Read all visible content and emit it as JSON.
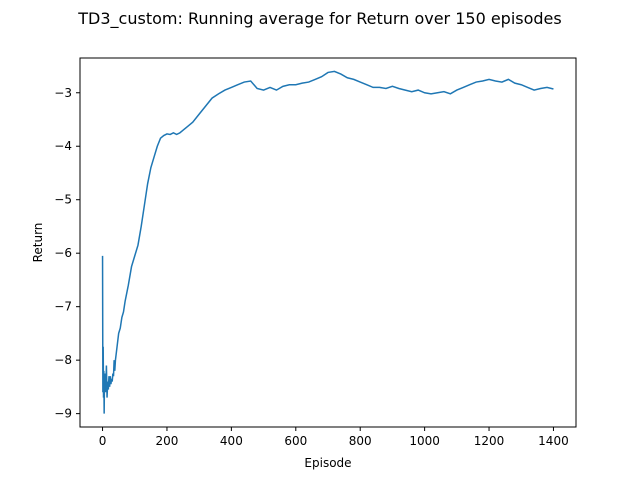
{
  "chart_data": {
    "type": "line",
    "title": "TD3_custom: Running average for Return over 150 episodes",
    "xlabel": "Episode",
    "ylabel": "Return",
    "xlim": [
      -70,
      1470
    ],
    "ylim": [
      -9.25,
      -2.35
    ],
    "xticks": [
      0,
      200,
      400,
      600,
      800,
      1000,
      1200,
      1400
    ],
    "yticks": [
      -9,
      -8,
      -7,
      -6,
      -5,
      -4,
      -3
    ],
    "xtick_labels": [
      "0",
      "200",
      "400",
      "600",
      "800",
      "1000",
      "1200",
      "1400"
    ],
    "ytick_labels": [
      "−9",
      "−8",
      "−7",
      "−6",
      "−5",
      "−4",
      "−3"
    ],
    "grid": false,
    "series": [
      {
        "color": "#1f77b4",
        "x": [
          0,
          1,
          2,
          3,
          4,
          5,
          6,
          7,
          8,
          10,
          12,
          14,
          16,
          18,
          20,
          22,
          24,
          26,
          28,
          30,
          32,
          34,
          36,
          38,
          40,
          45,
          50,
          55,
          60,
          65,
          70,
          80,
          90,
          100,
          110,
          120,
          130,
          140,
          150,
          160,
          170,
          180,
          190,
          200,
          210,
          220,
          230,
          240,
          250,
          260,
          280,
          300,
          320,
          340,
          360,
          380,
          400,
          420,
          440,
          460,
          480,
          500,
          520,
          540,
          560,
          580,
          600,
          620,
          640,
          660,
          680,
          700,
          720,
          740,
          760,
          780,
          800,
          820,
          840,
          860,
          880,
          900,
          920,
          940,
          960,
          980,
          1000,
          1020,
          1040,
          1060,
          1080,
          1100,
          1120,
          1140,
          1160,
          1180,
          1200,
          1220,
          1240,
          1260,
          1280,
          1300,
          1320,
          1340,
          1360,
          1380,
          1400
        ],
        "y": [
          -6.05,
          -8.6,
          -7.75,
          -8.7,
          -8.2,
          -9.0,
          -8.3,
          -8.6,
          -8.25,
          -8.6,
          -8.1,
          -8.7,
          -8.4,
          -8.55,
          -8.3,
          -8.5,
          -8.3,
          -8.45,
          -8.35,
          -8.4,
          -8.25,
          -8.3,
          -8.0,
          -8.2,
          -8.0,
          -7.75,
          -7.5,
          -7.4,
          -7.2,
          -7.1,
          -6.9,
          -6.6,
          -6.25,
          -6.05,
          -5.85,
          -5.5,
          -5.1,
          -4.7,
          -4.4,
          -4.2,
          -4.0,
          -3.85,
          -3.8,
          -3.77,
          -3.78,
          -3.75,
          -3.78,
          -3.75,
          -3.7,
          -3.65,
          -3.55,
          -3.4,
          -3.25,
          -3.1,
          -3.02,
          -2.95,
          -2.9,
          -2.85,
          -2.8,
          -2.78,
          -2.92,
          -2.95,
          -2.9,
          -2.95,
          -2.88,
          -2.85,
          -2.85,
          -2.82,
          -2.8,
          -2.75,
          -2.7,
          -2.62,
          -2.6,
          -2.65,
          -2.72,
          -2.75,
          -2.8,
          -2.85,
          -2.9,
          -2.9,
          -2.92,
          -2.88,
          -2.92,
          -2.95,
          -2.98,
          -2.95,
          -3.0,
          -3.02,
          -3.0,
          -2.98,
          -3.02,
          -2.95,
          -2.9,
          -2.85,
          -2.8,
          -2.78,
          -2.75,
          -2.78,
          -2.8,
          -2.75,
          -2.82,
          -2.85,
          -2.9,
          -2.95,
          -2.92,
          -2.9,
          -2.93
        ]
      }
    ]
  }
}
